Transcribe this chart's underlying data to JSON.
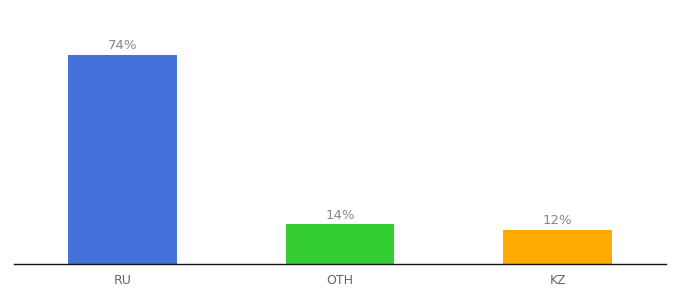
{
  "categories": [
    "RU",
    "OTH",
    "KZ"
  ],
  "values": [
    74,
    14,
    12
  ],
  "bar_colors": [
    "#4472db",
    "#33cc33",
    "#ffaa00"
  ],
  "labels": [
    "74%",
    "14%",
    "12%"
  ],
  "label_color": "#888888",
  "label_fontsize": 9.5,
  "tick_fontsize": 9,
  "tick_color": "#666666",
  "background_color": "#ffffff",
  "bar_width": 0.5,
  "bar_positions": [
    0.5,
    1.5,
    2.5
  ],
  "xlim": [
    0,
    3.0
  ],
  "ylim": [
    0,
    88
  ]
}
